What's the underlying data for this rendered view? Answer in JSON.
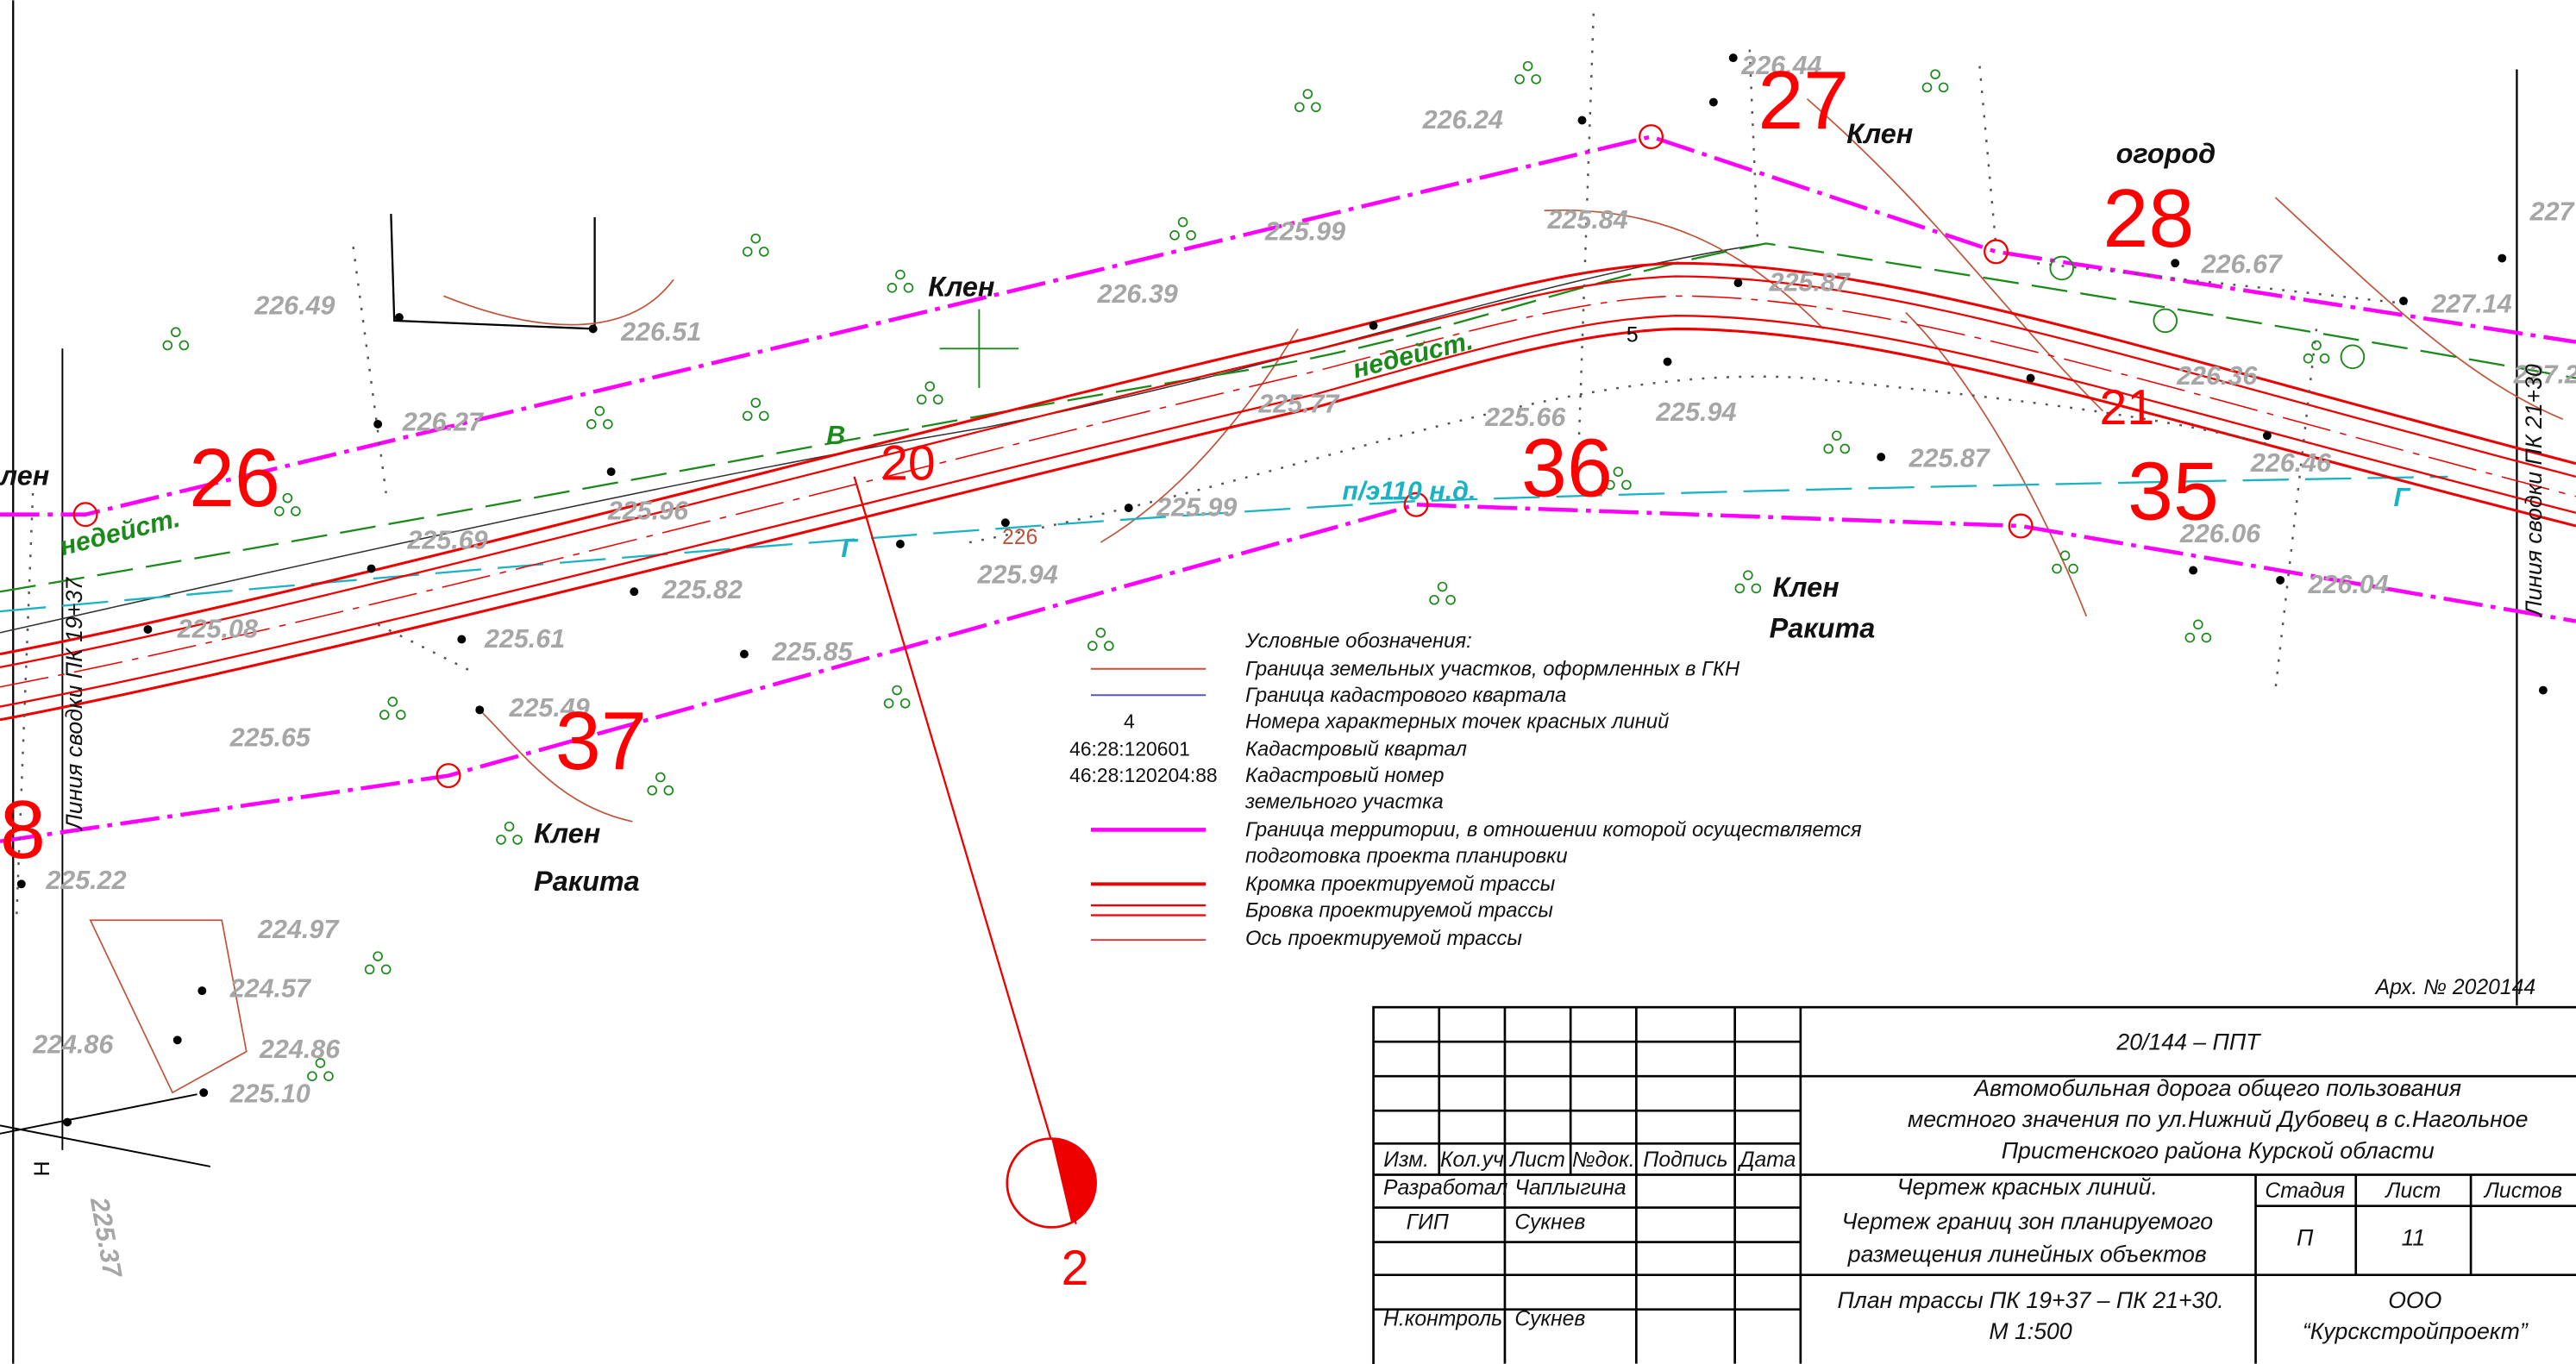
{
  "elevations": [
    "226.44",
    "226.24",
    "225.84",
    "225.99",
    "226.39",
    "226.49",
    "226.51",
    "225.87",
    "226.67",
    "227.14",
    "227",
    "226.36",
    "227.2",
    "225.77",
    "225.66",
    "225.94",
    "226.27",
    "225.87",
    "226.46",
    "225.96",
    "225.99",
    "225.69",
    "226.06",
    "225.82",
    "225.94",
    "226.04",
    "225.08",
    "225.61",
    "225.85",
    "225.49",
    "225.65",
    "225.22",
    "224.97",
    "224.57",
    "224.86",
    "224.86",
    "225.10",
    "225.37"
  ],
  "point_numbers": [
    "27",
    "28",
    "26",
    "36",
    "35",
    "37",
    "8",
    "20",
    "21",
    "2"
  ],
  "vegetation_labels": [
    "Клен",
    "Клен",
    "огород",
    "Клен",
    "Ракита",
    "Клен",
    "Ракита",
    "лен"
  ],
  "status_labels": [
    "недейст.",
    "недейст.",
    "В"
  ],
  "utility_labels": [
    "п/э110 н.д.",
    "Г",
    "Г"
  ],
  "misc_labels": [
    "226",
    "5",
    "Н"
  ],
  "section_lines": [
    "Линия сводки ПК 19+37",
    "Линия сводки ПК 21+30"
  ],
  "legend": {
    "title": "Условные обозначения:",
    "items": [
      {
        "text": [
          "Граница земельных участков, оформленных в ГКН"
        ]
      },
      {
        "text": [
          "Граница кадастрового квартала"
        ]
      },
      {
        "code": "4",
        "text": [
          "Номера характерных точек красных линий"
        ]
      },
      {
        "code": "46:28:120601",
        "text": [
          "Кадастровый квартал"
        ]
      },
      {
        "code": "46:28:120204:88",
        "text": [
          "Кадастровый номер",
          "земельного участка"
        ]
      },
      {
        "text": [
          "Граница территории, в отношении которой осуществляется",
          "подготовка проекта планировки"
        ]
      },
      {
        "text": [
          "Кромка проектируемой трассы"
        ]
      },
      {
        "text": [
          "Бровка проектируемой трассы"
        ]
      },
      {
        "text": [
          "Ось проектируемой трассы"
        ]
      }
    ]
  },
  "title_block": {
    "archive": "Арх. № 2020144",
    "code": "20/144 – ППТ",
    "object": [
      "Автомобильная дорога общего пользования",
      "местного значения по ул.Нижний Дубовец в с.Нагольное",
      "Пристенского района Курской области"
    ],
    "headers": [
      "Изм.",
      "Кол.уч",
      "Лист",
      "№док.",
      "Подпись",
      "Дата"
    ],
    "signatures": [
      [
        "Разработал",
        "Чаплыгина"
      ],
      [
        "ГИП",
        "Сукнев"
      ],
      [
        "Н.контроль",
        "Сукнев"
      ]
    ],
    "drawing": [
      "Чертеж красных линий.",
      "Чертеж границ зон планируемого",
      "размещения линейных объектов"
    ],
    "stage_headers": [
      "Стадия",
      "Лист",
      "Листов"
    ],
    "stage": "П",
    "sheet": "11",
    "plan": [
      "План трассы ПК 19+37 – ПК 21+30.",
      "М 1:500"
    ],
    "company": [
      "ООО",
      "“Курскстройпроект”"
    ]
  }
}
